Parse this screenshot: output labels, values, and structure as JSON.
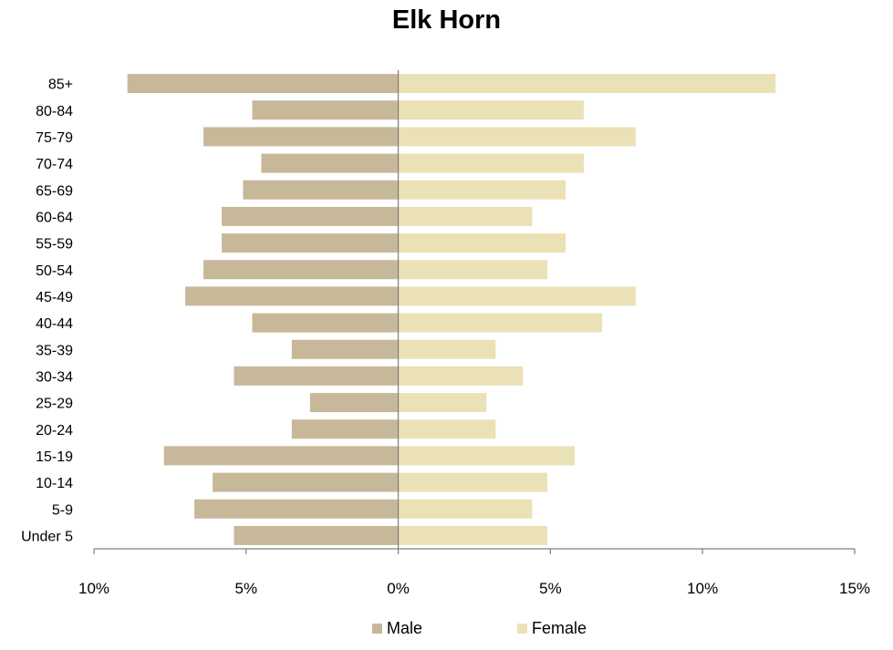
{
  "chart_data": {
    "type": "bar",
    "orientation": "horizontal",
    "title": "Elk Horn",
    "xlabel": "",
    "ylabel": "",
    "categories": [
      "Under 5",
      "5-9",
      "10-14",
      "15-19",
      "20-24",
      "25-29",
      "30-34",
      "35-39",
      "40-44",
      "45-49",
      "50-54",
      "55-59",
      "60-64",
      "65-69",
      "70-74",
      "75-79",
      "80-84",
      "85+"
    ],
    "series": [
      {
        "name": "Male",
        "color": "#c7b899",
        "values": [
          -5.4,
          -6.7,
          -6.1,
          -7.7,
          -3.5,
          -2.9,
          -5.4,
          -3.5,
          -4.8,
          -7.0,
          -6.4,
          -5.8,
          -5.8,
          -5.1,
          -4.5,
          -6.4,
          -4.8,
          -8.9
        ]
      },
      {
        "name": "Female",
        "color": "#ebe1b7",
        "values": [
          4.9,
          4.4,
          4.9,
          5.8,
          3.2,
          2.9,
          4.1,
          3.2,
          6.7,
          7.8,
          4.9,
          5.5,
          4.4,
          5.5,
          6.1,
          7.8,
          6.1,
          12.4
        ]
      }
    ],
    "xlim": [
      -10,
      15
    ],
    "x_ticks": [
      -10,
      -5,
      0,
      5,
      10,
      15
    ],
    "x_tick_labels": [
      "10%",
      "5%",
      "0%",
      "5%",
      "10%",
      "15%"
    ],
    "grid": false,
    "legend_position": "bottom"
  }
}
